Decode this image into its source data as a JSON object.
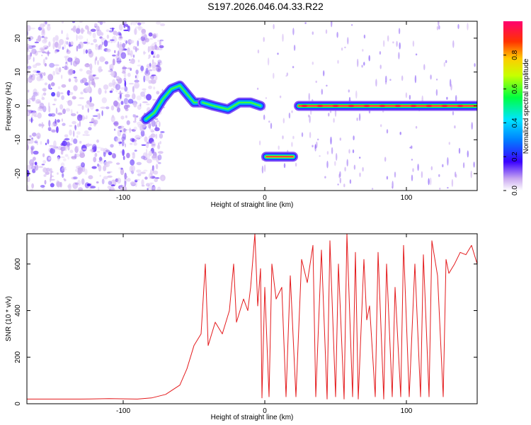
{
  "title": "S197.2026.046.04.33.R22",
  "chart_data": [
    {
      "type": "heatmap",
      "xlabel": "Height of straight line (km)",
      "ylabel": "Frequency (Hz)",
      "xlim": [
        -168,
        150
      ],
      "ylim": [
        -25,
        25
      ],
      "xticks": [
        -100,
        0,
        100
      ],
      "yticks": [
        20,
        10,
        0,
        -10,
        -20
      ],
      "colorbar": {
        "label": "Normalized spectral amplitude",
        "range": [
          0,
          1
        ],
        "ticks": [
          0.0,
          0.2,
          0.4,
          0.6,
          0.8
        ]
      },
      "tracks": [
        {
          "segment": "rising",
          "points": [
            [
              -84,
              -4
            ],
            [
              -78,
              -2
            ],
            [
              -72,
              2
            ],
            [
              -66,
              5
            ],
            [
              -60,
              6
            ],
            [
              -54,
              3
            ],
            [
              -50,
              1
            ],
            [
              -44,
              1
            ]
          ],
          "peak": 0.6
        },
        {
          "segment": "mid",
          "points": [
            [
              -44,
              1
            ],
            [
              -36,
              0
            ],
            [
              -26,
              -1
            ],
            [
              -18,
              1
            ],
            [
              -10,
              1
            ],
            [
              -3,
              0
            ]
          ],
          "peak": 0.6
        },
        {
          "segment": "offset",
          "points": [
            [
              1,
              -15
            ],
            [
              10,
              -15
            ],
            [
              20,
              -15
            ]
          ],
          "peak": 0.95
        },
        {
          "segment": "carrier",
          "points": [
            [
              24,
              0
            ],
            [
              150,
              0
            ]
          ],
          "peak": 1.0
        }
      ],
      "noise_region_x": [
        -168,
        -80
      ]
    },
    {
      "type": "line",
      "xlabel": "Height of straight line (km)",
      "ylabel": "SNR (10 * v/v)",
      "xlim": [
        -168,
        150
      ],
      "ylim": [
        0,
        730
      ],
      "xticks": [
        -100,
        0,
        100
      ],
      "yticks": [
        0,
        200,
        400,
        600
      ],
      "series": [
        {
          "color": "#e41a1c",
          "x": [
            -168,
            -150,
            -130,
            -110,
            -90,
            -80,
            -70,
            -60,
            -55,
            -50,
            -45,
            -42,
            -40,
            -35,
            -30,
            -25,
            -22,
            -20,
            -15,
            -12,
            -10,
            -7,
            -5,
            -3,
            -2,
            0,
            3,
            5,
            8,
            12,
            15,
            18,
            22,
            26,
            30,
            34,
            36,
            40,
            44,
            46,
            50,
            52,
            56,
            58,
            62,
            64,
            66,
            70,
            72,
            74,
            78,
            80,
            84,
            86,
            90,
            92,
            96,
            98,
            102,
            106,
            110,
            112,
            116,
            118,
            122,
            126,
            128,
            130,
            134,
            138,
            142,
            146,
            150
          ],
          "y": [
            20,
            20,
            20,
            22,
            20,
            25,
            40,
            80,
            150,
            250,
            300,
            600,
            250,
            350,
            300,
            400,
            600,
            350,
            450,
            400,
            500,
            730,
            420,
            580,
            25,
            500,
            30,
            600,
            450,
            500,
            30,
            550,
            30,
            620,
            520,
            680,
            30,
            660,
            20,
            700,
            30,
            600,
            20,
            730,
            30,
            650,
            20,
            620,
            360,
            420,
            30,
            650,
            20,
            600,
            30,
            500,
            30,
            680,
            30,
            600,
            30,
            640,
            30,
            700,
            550,
            30,
            620,
            560,
            600,
            650,
            640,
            680,
            600
          ]
        }
      ]
    }
  ]
}
